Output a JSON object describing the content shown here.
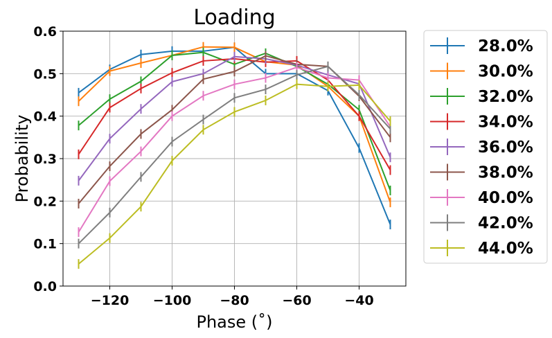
{
  "chart_data": {
    "type": "line",
    "title": "Loading",
    "xlabel": "Phase (˚)",
    "ylabel": "Probability",
    "xlim": [
      -135,
      -25
    ],
    "ylim": [
      0.0,
      0.6
    ],
    "xticks": [
      -120,
      -100,
      -80,
      -60,
      -40
    ],
    "xtick_labels": [
      "−120",
      "−100",
      "−80",
      "−60",
      "−40"
    ],
    "yticks": [
      0.0,
      0.1,
      0.2,
      0.3,
      0.4,
      0.5,
      0.6
    ],
    "ytick_labels": [
      "0.0",
      "0.1",
      "0.2",
      "0.3",
      "0.4",
      "0.5",
      "0.6"
    ],
    "grid": true,
    "legend_position": "outside-right",
    "error_bars": true,
    "x": [
      -130,
      -120,
      -110,
      -100,
      -90,
      -80,
      -70,
      -60,
      -50,
      -40,
      -30
    ],
    "series": [
      {
        "name": "28.0%",
        "color": "#1f77b4",
        "values": [
          0.455,
          0.51,
          0.545,
          0.553,
          0.553,
          0.562,
          0.5,
          0.5,
          0.46,
          0.325,
          0.145
        ]
      },
      {
        "name": "30.0%",
        "color": "#ff7f0e",
        "values": [
          0.435,
          0.506,
          0.525,
          0.543,
          0.563,
          0.562,
          0.528,
          0.52,
          0.47,
          0.4,
          0.197
        ]
      },
      {
        "name": "32.0%",
        "color": "#2ca02c",
        "values": [
          0.378,
          0.44,
          0.482,
          0.543,
          0.55,
          0.522,
          0.548,
          0.517,
          0.475,
          0.415,
          0.225
        ]
      },
      {
        "name": "34.0%",
        "color": "#d62728",
        "values": [
          0.31,
          0.42,
          0.465,
          0.502,
          0.53,
          0.535,
          0.527,
          0.53,
          0.485,
          0.4,
          0.273
        ]
      },
      {
        "name": "36.0%",
        "color": "#9467bd",
        "values": [
          0.248,
          0.347,
          0.417,
          0.481,
          0.5,
          0.54,
          0.535,
          0.52,
          0.497,
          0.476,
          0.303
        ]
      },
      {
        "name": "38.0%",
        "color": "#8c564b",
        "values": [
          0.194,
          0.282,
          0.358,
          0.415,
          0.487,
          0.505,
          0.542,
          0.522,
          0.517,
          0.447,
          0.35
        ]
      },
      {
        "name": "40.0%",
        "color": "#e377c2",
        "values": [
          0.127,
          0.247,
          0.317,
          0.4,
          0.448,
          0.475,
          0.49,
          0.515,
          0.49,
          0.485,
          0.375
        ]
      },
      {
        "name": "42.0%",
        "color": "#7f7f7f",
        "values": [
          0.1,
          0.173,
          0.257,
          0.34,
          0.392,
          0.443,
          0.463,
          0.497,
          0.517,
          0.45,
          0.37
        ]
      },
      {
        "name": "44.0%",
        "color": "#bcbd22",
        "values": [
          0.052,
          0.113,
          0.187,
          0.295,
          0.368,
          0.41,
          0.437,
          0.475,
          0.47,
          0.473,
          0.388
        ]
      }
    ]
  }
}
